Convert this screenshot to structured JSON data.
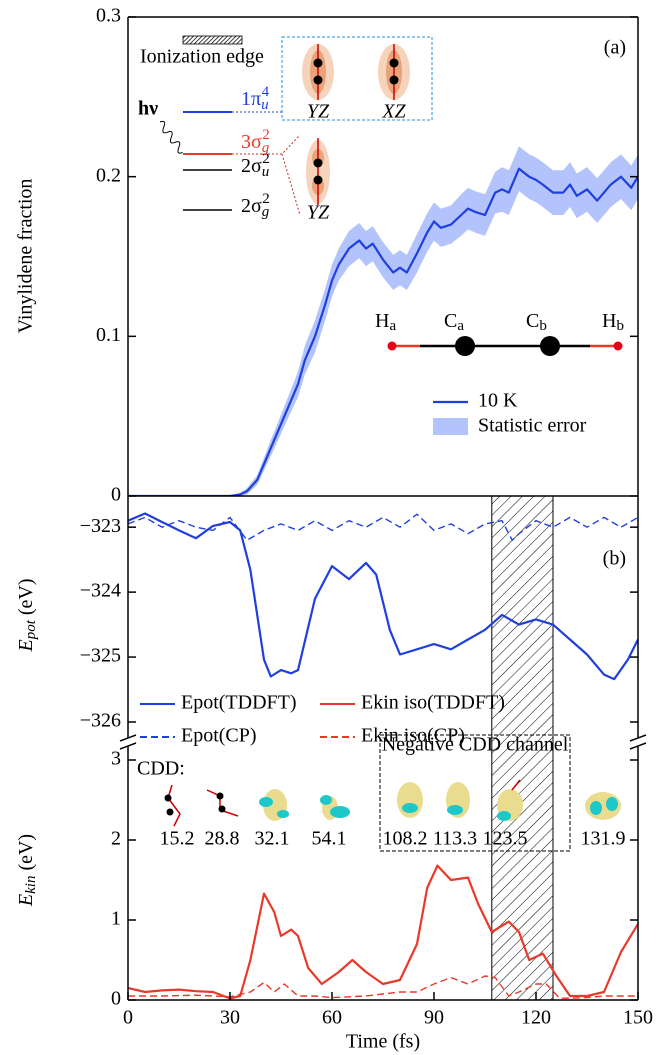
{
  "chart_data": [
    {
      "type": "line",
      "panel_label": "(a)",
      "ylabel": "Vinylidene fraction",
      "xlim": [
        0,
        150
      ],
      "ylim": [
        0,
        0.3
      ],
      "yticks": [
        0,
        0.1,
        0.2,
        0.3
      ],
      "error_name": "Statistic error",
      "error_color": "#b3c3fb",
      "series": [
        {
          "name": "10 K",
          "color": "#1f3fe0",
          "linestyle": "solid",
          "x": [
            0,
            10,
            20,
            30,
            33,
            35,
            38,
            40,
            42,
            45,
            48,
            50,
            52,
            55,
            58,
            60,
            62,
            65,
            68,
            70,
            72,
            75,
            78,
            80,
            82,
            85,
            88,
            90,
            92,
            95,
            98,
            100,
            102,
            105,
            108,
            110,
            112,
            115,
            118,
            120,
            122,
            125,
            128,
            130,
            132,
            135,
            138,
            140,
            142,
            145,
            148,
            150
          ],
          "values": [
            0,
            0,
            0,
            0,
            0.001,
            0.003,
            0.01,
            0.02,
            0.03,
            0.045,
            0.06,
            0.07,
            0.085,
            0.1,
            0.12,
            0.135,
            0.145,
            0.155,
            0.16,
            0.155,
            0.158,
            0.148,
            0.14,
            0.143,
            0.14,
            0.152,
            0.165,
            0.172,
            0.168,
            0.17,
            0.176,
            0.18,
            0.178,
            0.176,
            0.19,
            0.192,
            0.19,
            0.205,
            0.2,
            0.198,
            0.195,
            0.19,
            0.19,
            0.195,
            0.188,
            0.192,
            0.185,
            0.19,
            0.195,
            0.2,
            0.193,
            0.2
          ],
          "errors": [
            0,
            0,
            0,
            0,
            0.001,
            0.002,
            0.003,
            0.004,
            0.005,
            0.006,
            0.007,
            0.008,
            0.009,
            0.01,
            0.01,
            0.01,
            0.01,
            0.011,
            0.011,
            0.011,
            0.011,
            0.011,
            0.011,
            0.011,
            0.011,
            0.012,
            0.012,
            0.012,
            0.012,
            0.012,
            0.013,
            0.013,
            0.013,
            0.013,
            0.013,
            0.014,
            0.014,
            0.014,
            0.014,
            0.014,
            0.014,
            0.014,
            0.014,
            0.014,
            0.014,
            0.014,
            0.014,
            0.014,
            0.014,
            0.014,
            0.014,
            0.014
          ]
        }
      ],
      "annotations": {
        "ionization_edge": "Ionization edge",
        "photon": "hν",
        "orbitals": [
          {
            "main": "1π",
            "sub": "u",
            "sup": "4"
          },
          {
            "main": "3σ",
            "sub": "g",
            "sup": "2"
          },
          {
            "main": "2σ",
            "sub": "u",
            "sup": "2"
          },
          {
            "main": "2σ",
            "sub": "g",
            "sup": "2"
          }
        ],
        "orbital_views": [
          "YZ",
          "XZ",
          "YZ"
        ],
        "atoms": [
          {
            "main": "H",
            "sub": "a"
          },
          {
            "main": "C",
            "sub": "a"
          },
          {
            "main": "C",
            "sub": "b"
          },
          {
            "main": "H",
            "sub": "b"
          }
        ]
      }
    },
    {
      "type": "line",
      "panel_label": "(b)",
      "ylabel": {
        "main": "E",
        "sub": "pot",
        "rest": " (eV)"
      },
      "xlim": [
        0,
        150
      ],
      "ylim": [
        -326.2,
        -322.52
      ],
      "yticks": [
        {
          "value": -323,
          "label": "−323"
        },
        {
          "value": -324,
          "label": "−324"
        },
        {
          "value": -325,
          "label": "−325"
        },
        {
          "value": -326,
          "label": "−326"
        }
      ],
      "series": [
        {
          "name": "Epot(TDDFT)",
          "color": "#1f3fe0",
          "linestyle": "solid",
          "x": [
            0,
            5,
            10,
            15,
            20,
            25,
            30,
            33,
            36,
            40,
            42,
            45,
            48,
            50,
            55,
            60,
            65,
            70,
            73,
            77,
            80,
            85,
            90,
            95,
            100,
            105,
            110,
            115,
            120,
            125,
            130,
            135,
            140,
            143,
            147,
            150
          ],
          "values": [
            -322.9,
            -322.79,
            -322.92,
            -323.05,
            -323.17,
            -322.98,
            -322.92,
            -323.05,
            -323.66,
            -325.04,
            -325.3,
            -325.2,
            -325.25,
            -325.2,
            -324.1,
            -323.6,
            -323.8,
            -323.55,
            -323.73,
            -324.58,
            -324.96,
            -324.88,
            -324.8,
            -324.88,
            -324.73,
            -324.58,
            -324.35,
            -324.5,
            -324.42,
            -324.5,
            -324.73,
            -324.96,
            -325.27,
            -325.34,
            -325.04,
            -324.73
          ]
        },
        {
          "name": "Epot(CP)",
          "color": "#1f3fe0",
          "linestyle": "dashed",
          "x": [
            0,
            5,
            10,
            15,
            20,
            25,
            30,
            35,
            40,
            45,
            50,
            55,
            60,
            65,
            70,
            75,
            80,
            85,
            90,
            95,
            100,
            105,
            110,
            113,
            115,
            120,
            125,
            130,
            135,
            140,
            145,
            150
          ],
          "values": [
            -322.95,
            -322.85,
            -323.0,
            -322.9,
            -323.0,
            -323.05,
            -322.85,
            -323.2,
            -323.05,
            -322.95,
            -323.05,
            -322.9,
            -323.05,
            -322.9,
            -323.0,
            -322.85,
            -323.0,
            -322.8,
            -323.05,
            -322.95,
            -323.1,
            -322.95,
            -322.9,
            -323.2,
            -323.1,
            -322.9,
            -323.0,
            -322.85,
            -323.0,
            -322.85,
            -323.0,
            -322.85
          ]
        }
      ]
    },
    {
      "type": "line",
      "ylabel": {
        "main": "E",
        "sub": "kin",
        "rest": " (eV)"
      },
      "xlabel": "Time (fs)",
      "xlim": [
        0,
        150
      ],
      "xticks": [
        0,
        30,
        60,
        90,
        120,
        150
      ],
      "ylim": [
        0,
        3.2
      ],
      "yticks": [
        0,
        1,
        2,
        3
      ],
      "hatch_x": [
        107,
        125
      ],
      "series": [
        {
          "name": "Ekin iso(TDDFT)",
          "color": "#e8392a",
          "linestyle": "solid",
          "x": [
            0,
            5,
            10,
            15,
            20,
            25,
            30,
            33,
            36,
            40,
            43,
            45,
            48,
            50,
            53,
            57,
            62,
            66,
            70,
            75,
            80,
            85,
            88,
            91,
            95,
            100,
            103,
            107,
            112,
            115,
            118,
            122,
            126,
            130,
            135,
            140,
            145,
            150
          ],
          "values": [
            0.15,
            0.1,
            0.12,
            0.13,
            0.11,
            0.1,
            0.02,
            0.05,
            0.5,
            1.33,
            1.1,
            0.8,
            0.88,
            0.8,
            0.4,
            0.2,
            0.35,
            0.5,
            0.35,
            0.2,
            0.25,
            0.7,
            1.4,
            1.68,
            1.5,
            1.53,
            1.2,
            0.85,
            0.98,
            0.85,
            0.5,
            0.58,
            0.3,
            0.05,
            0.05,
            0.1,
            0.6,
            0.95
          ]
        },
        {
          "name": "Ekin iso(CP)",
          "color": "#e8392a",
          "linestyle": "dashed",
          "x": [
            0,
            10,
            20,
            30,
            36,
            40,
            43,
            46,
            50,
            55,
            60,
            70,
            80,
            85,
            90,
            95,
            100,
            105,
            108,
            112,
            115,
            120,
            123,
            127,
            135,
            140,
            150
          ],
          "values": [
            0.05,
            0.05,
            0.06,
            0.04,
            0.1,
            0.22,
            0.1,
            0.2,
            0.05,
            0.05,
            0.03,
            0.05,
            0.1,
            0.1,
            0.2,
            0.28,
            0.2,
            0.3,
            0.28,
            0.05,
            0.1,
            0.2,
            0.2,
            0.02,
            0.03,
            0.05,
            0.05
          ]
        }
      ],
      "annotations": {
        "cdd_title": "CDD:",
        "cdd_channel": "Negative CDD channel",
        "cdd_times": [
          15.2,
          28.8,
          32.1,
          54.1,
          108.2,
          113.3,
          123.5,
          131.9
        ]
      }
    }
  ]
}
